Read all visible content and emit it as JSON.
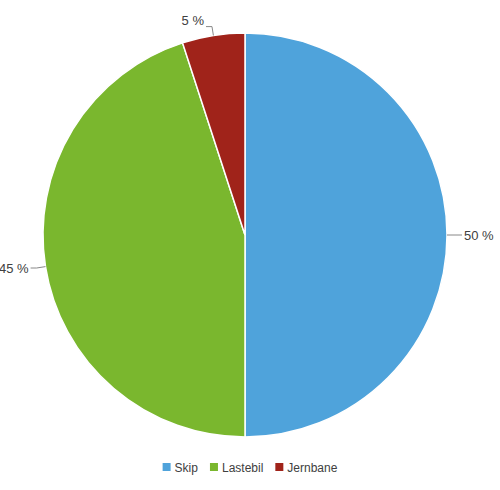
{
  "chart_data": {
    "type": "pie",
    "categories": [
      "Skip",
      "Lastebil",
      "Jernbane"
    ],
    "values": [
      50,
      45,
      5
    ],
    "value_labels": [
      "50 %",
      "45 %",
      "5 %"
    ],
    "colors": [
      "#4fa3db",
      "#7ab72e",
      "#a0231a"
    ],
    "data_labels": true,
    "legend": "bottom"
  }
}
